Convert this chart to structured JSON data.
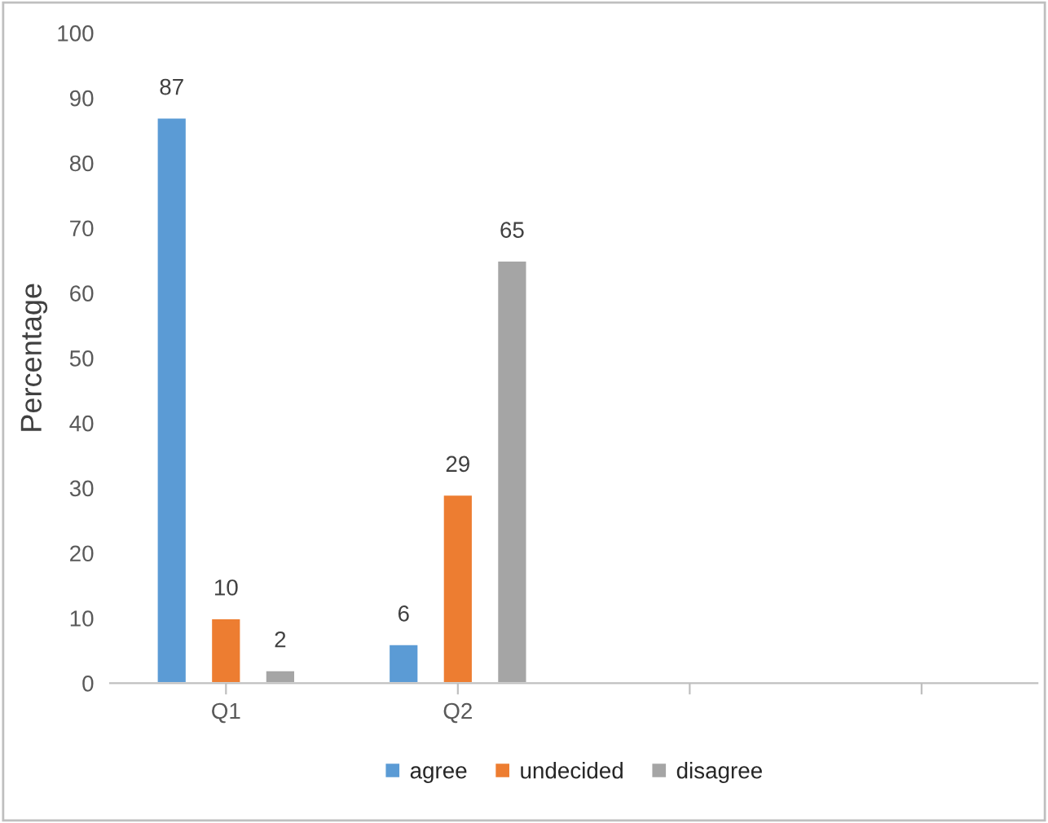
{
  "chart_data": {
    "type": "bar",
    "ylabel": "Percentage",
    "categories": [
      "Q1",
      "Q2",
      null,
      null
    ],
    "series": [
      {
        "name": "agree",
        "color": "#5b9bd5",
        "values": [
          87,
          6,
          null,
          null
        ]
      },
      {
        "name": "undecided",
        "color": "#ed7d31",
        "values": [
          10,
          29,
          null,
          null
        ]
      },
      {
        "name": "disagree",
        "color": "#a5a5a5",
        "values": [
          2,
          65,
          null,
          null
        ]
      }
    ],
    "ylim": [
      0,
      100
    ],
    "yticks": [
      0,
      10,
      20,
      30,
      40,
      50,
      60,
      70,
      80,
      90,
      100
    ],
    "data_labels": true,
    "grid": false,
    "legend": "bottom"
  }
}
